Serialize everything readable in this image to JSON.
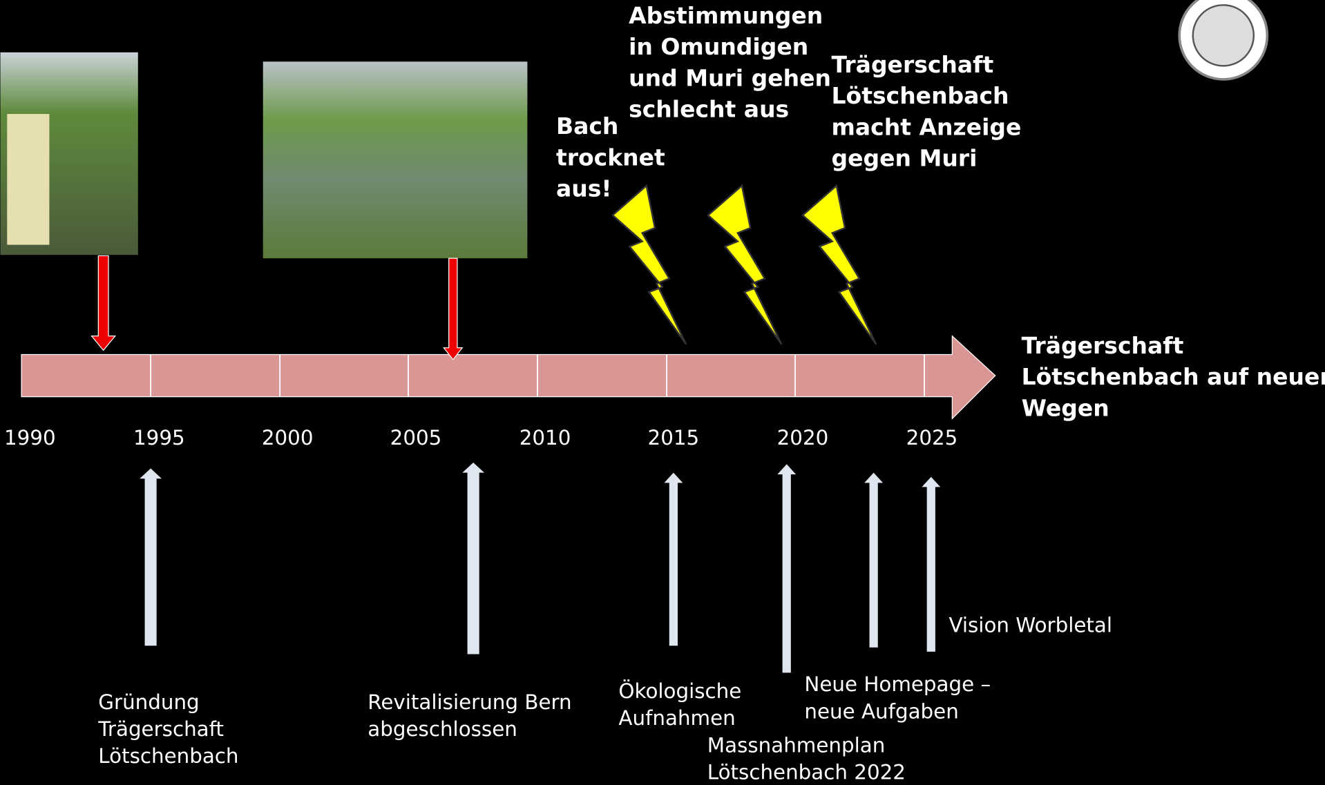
{
  "timeline": {
    "years": [
      "1990",
      "1995",
      "2000",
      "2005",
      "2010",
      "2015",
      "2020",
      "2025"
    ]
  },
  "events": [
    {
      "lines": [
        "Gründung",
        "Trägerschaft",
        "Lötschenbach"
      ]
    },
    {
      "lines": [
        "Revitalisierung Bern",
        "abgeschlossen"
      ]
    },
    {
      "lines": [
        "Ökologische",
        "Aufnahmen"
      ]
    },
    {
      "lines": [
        "Massnahmenplan",
        "Lötschenbach 2022"
      ]
    },
    {
      "lines": [
        "Neue Homepage –",
        "neue Aufgaben"
      ]
    },
    {
      "lines": [
        "Vision Worbletal"
      ]
    }
  ],
  "warnings": [
    {
      "lines": [
        "Bach",
        "trocknet",
        "aus!"
      ]
    },
    {
      "lines": [
        "Abstimmungen",
        "in Omundigen",
        "und Muri gehen",
        "schlecht aus"
      ]
    },
    {
      "lines": [
        "Trägerschaft",
        "Lötschenbach",
        "macht Anzeige",
        "gegen Muri"
      ]
    }
  ],
  "end_label": {
    "lines": [
      "Trägerschaft",
      "Lötschenbach auf neuen",
      "Wegen"
    ]
  }
}
